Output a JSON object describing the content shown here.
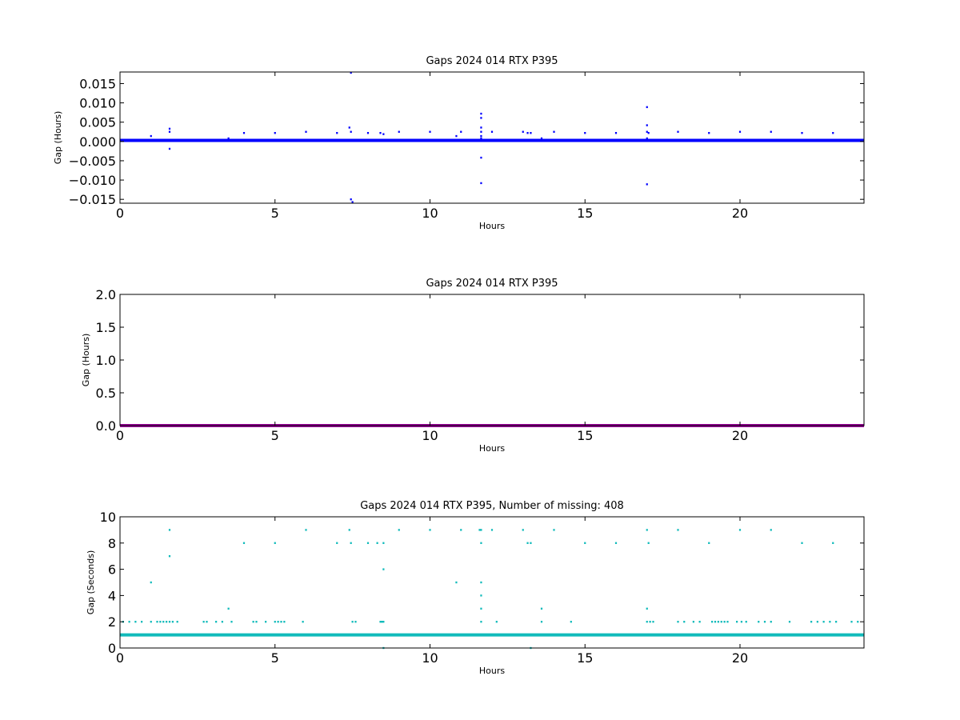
{
  "chart_data": [
    {
      "type": "scatter",
      "title": "Gaps 2024 014 RTX  P395",
      "xlabel": "Hours",
      "ylabel": "Gap (Hours)",
      "xlim": [
        0,
        24
      ],
      "ylim": [
        -0.016,
        0.018
      ],
      "xticks": [
        0,
        5,
        10,
        15,
        20
      ],
      "yticks": [
        -0.015,
        -0.01,
        -0.005,
        0.0,
        0.005,
        0.01,
        0.015
      ],
      "ytick_labels": [
        "−0.015",
        "−0.010",
        "−0.005",
        "0.000",
        "0.005",
        "0.010",
        "0.015"
      ],
      "xtick_labels": [
        "0",
        "5",
        "10",
        "15",
        "20"
      ],
      "color": "#0000ff",
      "baseline": {
        "y": 0.000278,
        "x_range": [
          0,
          24
        ]
      },
      "points": [
        {
          "x": 1.0,
          "y": 0.0014
        },
        {
          "x": 1.6,
          "y": 0.0033
        },
        {
          "x": 1.6,
          "y": 0.0025
        },
        {
          "x": 1.6,
          "y": -0.0019
        },
        {
          "x": 3.5,
          "y": 0.0008
        },
        {
          "x": 4.0,
          "y": 0.0022
        },
        {
          "x": 5.0,
          "y": 0.0022
        },
        {
          "x": 6.0,
          "y": 0.0025
        },
        {
          "x": 7.0,
          "y": 0.0022
        },
        {
          "x": 7.4,
          "y": 0.0036
        },
        {
          "x": 7.45,
          "y": 0.0025
        },
        {
          "x": 7.45,
          "y": 0.0178
        },
        {
          "x": 7.45,
          "y": -0.015
        },
        {
          "x": 7.5,
          "y": -0.0157
        },
        {
          "x": 8.0,
          "y": 0.0022
        },
        {
          "x": 8.4,
          "y": 0.0022
        },
        {
          "x": 8.5,
          "y": 0.0019
        },
        {
          "x": 9.0,
          "y": 0.0025
        },
        {
          "x": 10.0,
          "y": 0.0025
        },
        {
          "x": 10.85,
          "y": 0.0014
        },
        {
          "x": 11.0,
          "y": 0.0025
        },
        {
          "x": 11.65,
          "y": 0.0072
        },
        {
          "x": 11.65,
          "y": 0.0061
        },
        {
          "x": 11.65,
          "y": 0.0036
        },
        {
          "x": 11.65,
          "y": 0.0025
        },
        {
          "x": 11.65,
          "y": 0.0014
        },
        {
          "x": 11.65,
          "y": 0.0008
        },
        {
          "x": 11.65,
          "y": -0.0042
        },
        {
          "x": 11.65,
          "y": -0.0108
        },
        {
          "x": 12.0,
          "y": 0.0025
        },
        {
          "x": 13.0,
          "y": 0.0025
        },
        {
          "x": 13.15,
          "y": 0.0022
        },
        {
          "x": 13.25,
          "y": 0.0022
        },
        {
          "x": 13.6,
          "y": 0.0008
        },
        {
          "x": 14.0,
          "y": 0.0025
        },
        {
          "x": 15.0,
          "y": 0.0022
        },
        {
          "x": 16.0,
          "y": 0.0022
        },
        {
          "x": 17.0,
          "y": 0.0089
        },
        {
          "x": 17.0,
          "y": 0.0042
        },
        {
          "x": 17.0,
          "y": 0.0025
        },
        {
          "x": 17.0,
          "y": 0.0008
        },
        {
          "x": 17.05,
          "y": 0.0022
        },
        {
          "x": 17.0,
          "y": -0.0111
        },
        {
          "x": 18.0,
          "y": 0.0025
        },
        {
          "x": 19.0,
          "y": 0.0022
        },
        {
          "x": 20.0,
          "y": 0.0025
        },
        {
          "x": 21.0,
          "y": 0.0025
        },
        {
          "x": 22.0,
          "y": 0.0022
        },
        {
          "x": 23.0,
          "y": 0.0022
        }
      ]
    },
    {
      "type": "scatter",
      "title": "Gaps 2024 014 RTX  P395",
      "xlabel": "Hours",
      "ylabel": "Gap (Hours)",
      "xlim": [
        0,
        24
      ],
      "ylim": [
        0,
        2
      ],
      "xticks": [
        0,
        5,
        10,
        15,
        20
      ],
      "yticks": [
        0.0,
        0.5,
        1.0,
        1.5,
        2.0
      ],
      "ytick_labels": [
        "0.0",
        "0.5",
        "1.0",
        "1.5",
        "2.0"
      ],
      "xtick_labels": [
        "0",
        "5",
        "10",
        "15",
        "20"
      ],
      "color": "#990099",
      "baseline": {
        "y": 0.0003,
        "x_range": [
          0,
          24
        ]
      },
      "points": []
    },
    {
      "type": "scatter",
      "title": "Gaps 2024 014 RTX  P395, Number of missing: 408",
      "xlabel": "Hours",
      "ylabel": "Gap (Seconds)",
      "xlim": [
        0,
        24
      ],
      "ylim": [
        0,
        10
      ],
      "xticks": [
        0,
        5,
        10,
        15,
        20
      ],
      "yticks": [
        0,
        2,
        4,
        6,
        8,
        10
      ],
      "ytick_labels": [
        "0",
        "2",
        "4",
        "6",
        "8",
        "10"
      ],
      "xtick_labels": [
        "0",
        "5",
        "10",
        "15",
        "20"
      ],
      "color": "#11bbbb",
      "baseline": {
        "y": 1,
        "x_range": [
          0,
          24
        ]
      },
      "points": [
        {
          "x": 0.1,
          "y": 2
        },
        {
          "x": 0.3,
          "y": 2
        },
        {
          "x": 0.5,
          "y": 2
        },
        {
          "x": 0.7,
          "y": 2
        },
        {
          "x": 1.0,
          "y": 5
        },
        {
          "x": 1.0,
          "y": 2
        },
        {
          "x": 1.2,
          "y": 2
        },
        {
          "x": 1.3,
          "y": 2
        },
        {
          "x": 1.4,
          "y": 2
        },
        {
          "x": 1.5,
          "y": 2
        },
        {
          "x": 1.6,
          "y": 9
        },
        {
          "x": 1.6,
          "y": 7
        },
        {
          "x": 1.6,
          "y": 2
        },
        {
          "x": 1.7,
          "y": 2
        },
        {
          "x": 1.85,
          "y": 2
        },
        {
          "x": 2.7,
          "y": 2
        },
        {
          "x": 2.8,
          "y": 2
        },
        {
          "x": 3.1,
          "y": 2
        },
        {
          "x": 3.3,
          "y": 2
        },
        {
          "x": 3.5,
          "y": 3
        },
        {
          "x": 3.6,
          "y": 2
        },
        {
          "x": 4.0,
          "y": 8
        },
        {
          "x": 4.3,
          "y": 2
        },
        {
          "x": 4.4,
          "y": 2
        },
        {
          "x": 4.7,
          "y": 2
        },
        {
          "x": 5.0,
          "y": 8
        },
        {
          "x": 5.0,
          "y": 2
        },
        {
          "x": 5.1,
          "y": 2
        },
        {
          "x": 5.2,
          "y": 2
        },
        {
          "x": 5.3,
          "y": 2
        },
        {
          "x": 5.9,
          "y": 2
        },
        {
          "x": 6.0,
          "y": 9
        },
        {
          "x": 7.0,
          "y": 8
        },
        {
          "x": 7.4,
          "y": 9
        },
        {
          "x": 7.45,
          "y": 8
        },
        {
          "x": 7.5,
          "y": 2
        },
        {
          "x": 7.6,
          "y": 2
        },
        {
          "x": 8.0,
          "y": 8
        },
        {
          "x": 8.3,
          "y": 8
        },
        {
          "x": 8.4,
          "y": 2
        },
        {
          "x": 8.45,
          "y": 2
        },
        {
          "x": 8.5,
          "y": 8
        },
        {
          "x": 8.5,
          "y": 6
        },
        {
          "x": 8.5,
          "y": 2
        },
        {
          "x": 8.5,
          "y": 0
        },
        {
          "x": 9.0,
          "y": 9
        },
        {
          "x": 10.0,
          "y": 9
        },
        {
          "x": 10.85,
          "y": 5
        },
        {
          "x": 11.0,
          "y": 9
        },
        {
          "x": 11.6,
          "y": 9
        },
        {
          "x": 11.65,
          "y": 9
        },
        {
          "x": 11.65,
          "y": 8
        },
        {
          "x": 11.65,
          "y": 5
        },
        {
          "x": 11.65,
          "y": 4
        },
        {
          "x": 11.65,
          "y": 3
        },
        {
          "x": 11.65,
          "y": 2
        },
        {
          "x": 12.0,
          "y": 9
        },
        {
          "x": 12.15,
          "y": 2
        },
        {
          "x": 13.0,
          "y": 9
        },
        {
          "x": 13.15,
          "y": 8
        },
        {
          "x": 13.25,
          "y": 8
        },
        {
          "x": 13.25,
          "y": 0
        },
        {
          "x": 13.6,
          "y": 3
        },
        {
          "x": 13.6,
          "y": 2
        },
        {
          "x": 14.0,
          "y": 9
        },
        {
          "x": 14.55,
          "y": 2
        },
        {
          "x": 15.0,
          "y": 8
        },
        {
          "x": 16.0,
          "y": 8
        },
        {
          "x": 17.0,
          "y": 9
        },
        {
          "x": 17.05,
          "y": 8
        },
        {
          "x": 17.0,
          "y": 3
        },
        {
          "x": 17.0,
          "y": 2
        },
        {
          "x": 17.1,
          "y": 2
        },
        {
          "x": 17.2,
          "y": 2
        },
        {
          "x": 18.0,
          "y": 9
        },
        {
          "x": 18.0,
          "y": 2
        },
        {
          "x": 18.2,
          "y": 2
        },
        {
          "x": 18.5,
          "y": 2
        },
        {
          "x": 18.7,
          "y": 2
        },
        {
          "x": 19.0,
          "y": 8
        },
        {
          "x": 19.1,
          "y": 2
        },
        {
          "x": 19.2,
          "y": 2
        },
        {
          "x": 19.3,
          "y": 2
        },
        {
          "x": 19.4,
          "y": 2
        },
        {
          "x": 19.5,
          "y": 2
        },
        {
          "x": 19.6,
          "y": 2
        },
        {
          "x": 19.9,
          "y": 2
        },
        {
          "x": 20.0,
          "y": 9
        },
        {
          "x": 20.05,
          "y": 2
        },
        {
          "x": 20.2,
          "y": 2
        },
        {
          "x": 20.6,
          "y": 2
        },
        {
          "x": 20.8,
          "y": 2
        },
        {
          "x": 21.0,
          "y": 9
        },
        {
          "x": 21.0,
          "y": 2
        },
        {
          "x": 21.6,
          "y": 2
        },
        {
          "x": 22.0,
          "y": 8
        },
        {
          "x": 22.3,
          "y": 2
        },
        {
          "x": 22.5,
          "y": 2
        },
        {
          "x": 22.7,
          "y": 2
        },
        {
          "x": 22.9,
          "y": 2
        },
        {
          "x": 23.0,
          "y": 8
        },
        {
          "x": 23.1,
          "y": 2
        },
        {
          "x": 23.6,
          "y": 2
        },
        {
          "x": 23.8,
          "y": 2
        }
      ]
    }
  ]
}
